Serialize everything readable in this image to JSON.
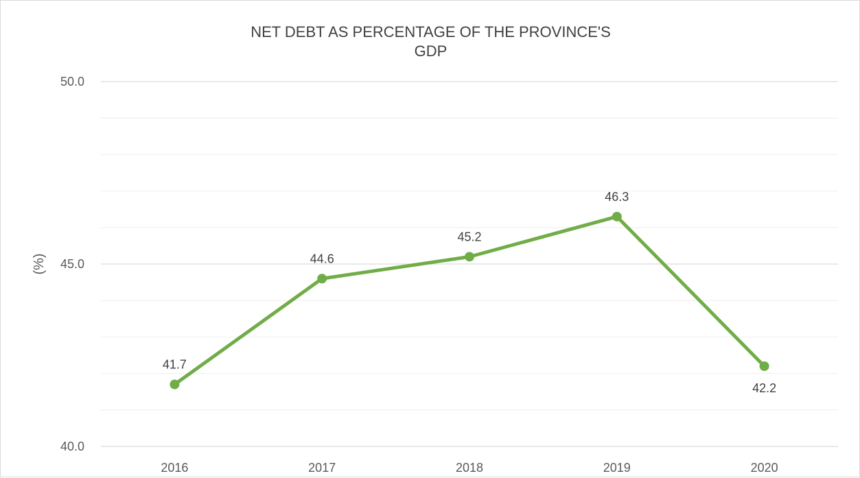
{
  "chart_data": {
    "type": "line",
    "title_lines": [
      "NET DEBT AS PERCENTAGE OF THE PROVINCE'S",
      "GDP"
    ],
    "ylabel": "(%)",
    "xlabel": "",
    "categories": [
      "2016",
      "2017",
      "2018",
      "2019",
      "2020"
    ],
    "series": [
      {
        "values": [
          41.7,
          44.6,
          45.2,
          46.3,
          42.2
        ],
        "value_labels": [
          "41.7",
          "44.6",
          "45.2",
          "46.3",
          "42.2"
        ]
      }
    ],
    "ylim": [
      40,
      50
    ],
    "y_ticks": [
      "40.0",
      "45.0",
      "50.0"
    ],
    "y_tick_values": [
      40,
      45,
      50
    ],
    "minor_grid_step": 1,
    "grid": true,
    "legend": "none",
    "colors": {
      "line": "#70ad47",
      "major_grid": "#d9d9d9",
      "minor_grid": "#eeeeee"
    }
  }
}
